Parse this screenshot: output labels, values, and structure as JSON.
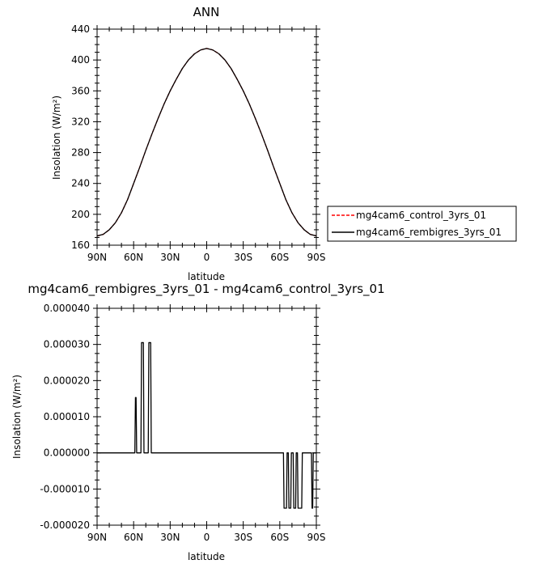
{
  "chart_data": [
    {
      "type": "line",
      "title": "ANN",
      "xlabel": "latitude",
      "ylabel": "Insolation (W/m²)",
      "xlim": [
        -90,
        90
      ],
      "ylim": [
        160,
        440
      ],
      "x_ticks": [
        -90,
        -60,
        -30,
        0,
        30,
        60,
        90
      ],
      "x_tick_labels": [
        "90N",
        "60N",
        "30N",
        "0",
        "30S",
        "60S",
        "90S"
      ],
      "y_ticks": [
        160,
        200,
        240,
        280,
        320,
        360,
        400,
        440
      ],
      "y_tick_labels": [
        "160",
        "200",
        "240",
        "280",
        "320",
        "360",
        "400",
        "440"
      ],
      "grid": false,
      "legend_placement": "right",
      "legend": [
        "mg4cam6_control_3yrs_01",
        "mg4cam6_rembigres_3yrs_01"
      ],
      "x": [
        -90,
        -85,
        -80,
        -75,
        -70,
        -65,
        -60,
        -55,
        -50,
        -45,
        -40,
        -35,
        -30,
        -25,
        -20,
        -15,
        -10,
        -5,
        0,
        5,
        10,
        15,
        20,
        25,
        30,
        35,
        40,
        45,
        50,
        55,
        60,
        65,
        70,
        75,
        80,
        85,
        90
      ],
      "series": [
        {
          "name": "mg4cam6_control_3yrs_01",
          "color": "#ff0000",
          "dash": "dashed",
          "values": [
            172,
            174,
            180,
            189,
            202,
            219,
            240,
            261,
            283,
            304,
            324,
            343,
            360,
            375,
            389,
            400,
            408,
            413,
            415,
            413,
            408,
            400,
            389,
            375,
            360,
            343,
            324,
            304,
            283,
            261,
            240,
            219,
            202,
            189,
            180,
            174,
            172
          ]
        },
        {
          "name": "mg4cam6_rembigres_3yrs_01",
          "color": "#000000",
          "dash": "solid",
          "values": [
            172,
            174,
            180,
            189,
            202,
            219,
            240,
            261,
            283,
            304,
            324,
            343,
            360,
            375,
            389,
            400,
            408,
            413,
            415,
            413,
            408,
            400,
            389,
            375,
            360,
            343,
            324,
            304,
            283,
            261,
            240,
            219,
            202,
            189,
            180,
            174,
            172
          ]
        }
      ]
    },
    {
      "type": "line",
      "title": "mg4cam6_rembigres_3yrs_01 - mg4cam6_control_3yrs_01",
      "xlabel": "latitude",
      "ylabel": "Insolation (W/m²)",
      "xlim": [
        -90,
        90
      ],
      "ylim": [
        -2e-05,
        4e-05
      ],
      "x_ticks": [
        -90,
        -60,
        -30,
        0,
        30,
        60,
        90
      ],
      "x_tick_labels": [
        "90N",
        "60N",
        "30N",
        "0",
        "30S",
        "60S",
        "90S"
      ],
      "y_ticks": [
        -2e-05,
        -1e-05,
        0,
        1e-05,
        2e-05,
        3e-05,
        4e-05
      ],
      "y_tick_labels": [
        "-0.000020",
        "-0.000010",
        "0.000000",
        "0.000010",
        "0.000020",
        "0.000030",
        "0.000040"
      ],
      "grid": false,
      "series": [
        {
          "color": "#000000",
          "x": [
            -90,
            -59,
            -58.5,
            -58,
            -57.5,
            -54,
            -53.5,
            -52,
            -51.5,
            -48,
            -47.5,
            -46,
            -45.5,
            -44,
            63,
            63.5,
            64,
            65.5,
            66,
            67,
            67.5,
            69,
            69.5,
            71,
            71.5,
            73,
            73.5,
            74.5,
            75,
            78,
            78.5,
            79.5,
            80,
            86,
            86.5,
            87,
            87.5,
            90
          ],
          "values": [
            0,
            0,
            1.53e-05,
            1.53e-05,
            0,
            0,
            3.05e-05,
            3.05e-05,
            0,
            0,
            3.05e-05,
            3.05e-05,
            0,
            0,
            0,
            -1.53e-05,
            -1.53e-05,
            -1.53e-05,
            0,
            0,
            -1.53e-05,
            -1.53e-05,
            0,
            0,
            -1.53e-05,
            -1.53e-05,
            0,
            0,
            -1.53e-05,
            -1.53e-05,
            0,
            0,
            0,
            0,
            -1.53e-05,
            -1.53e-05,
            0,
            0
          ]
        }
      ]
    }
  ]
}
